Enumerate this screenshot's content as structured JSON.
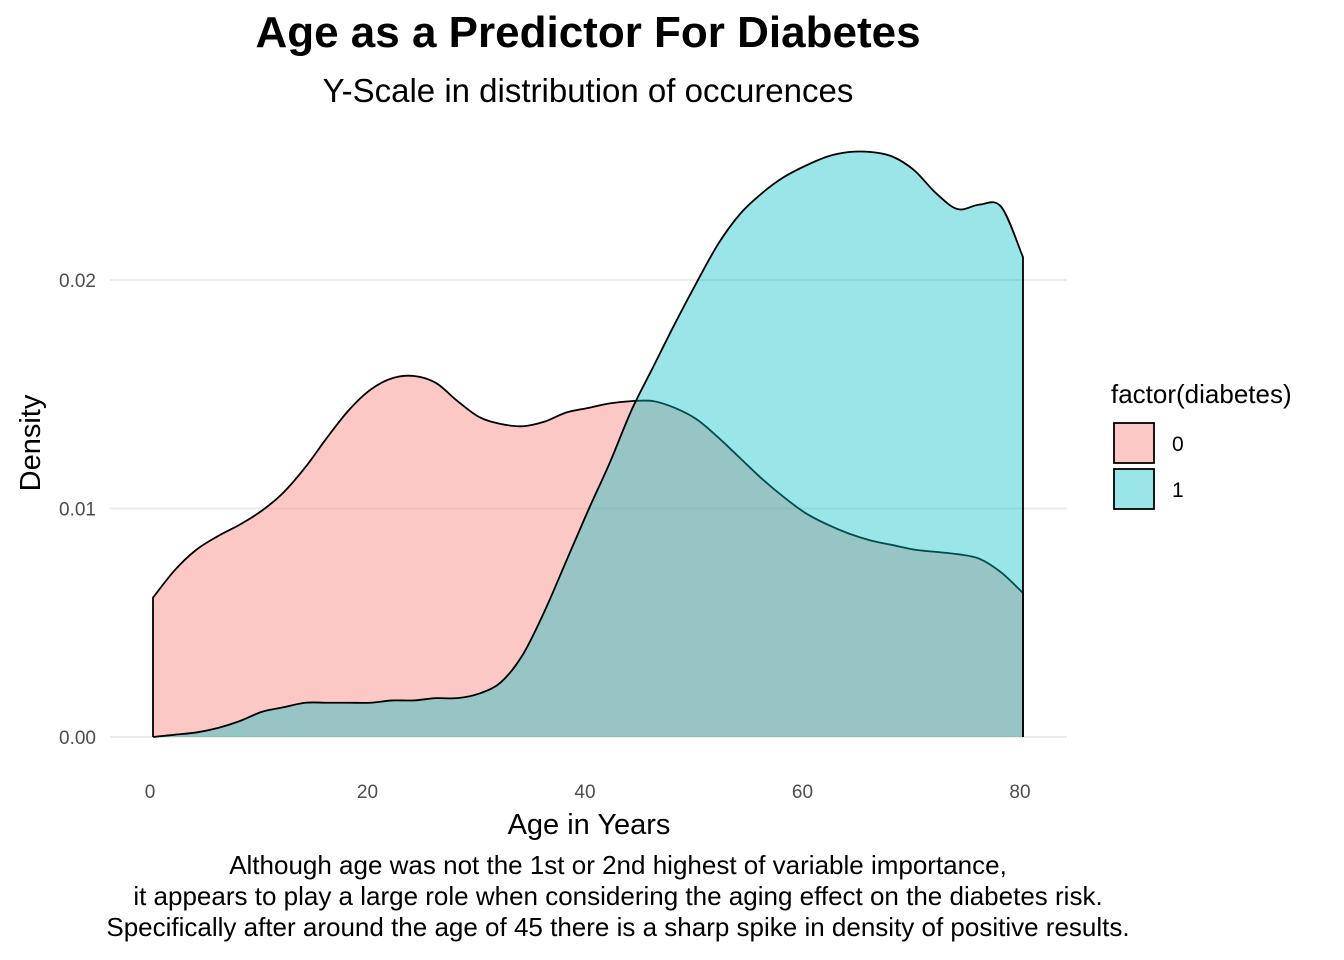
{
  "chart_data": {
    "type": "area",
    "title": "Age as a Predictor For Diabetes",
    "subtitle": "Y-Scale in distribution of occurences",
    "xlabel": "Age in Years",
    "ylabel": "Density",
    "xlim": [
      0,
      80
    ],
    "ylim": [
      0,
      0.026
    ],
    "xticks": [
      0,
      20,
      40,
      60,
      80
    ],
    "xtick_labels": [
      "0",
      "20",
      "40",
      "60",
      "80"
    ],
    "yticks": [
      0,
      0.01,
      0.02
    ],
    "ytick_labels": [
      "0.00",
      "0.01",
      "0.02"
    ],
    "grid": true,
    "legend": {
      "title": "factor(diabetes)",
      "position": "right"
    },
    "series": [
      {
        "name": "0",
        "color": "#F8766D",
        "x": [
          0,
          2,
          4,
          6,
          8,
          10,
          12,
          14,
          16,
          18,
          20,
          22,
          24,
          26,
          28,
          30,
          32,
          34,
          36,
          38,
          40,
          42,
          44,
          46,
          48,
          50,
          52,
          54,
          56,
          58,
          60,
          62,
          64,
          66,
          68,
          70,
          72,
          74,
          76,
          78,
          80
        ],
        "values": [
          0.0061,
          0.0073,
          0.0082,
          0.0088,
          0.0093,
          0.0099,
          0.0107,
          0.0118,
          0.0131,
          0.0143,
          0.0152,
          0.0157,
          0.0158,
          0.0155,
          0.0147,
          0.014,
          0.0137,
          0.0136,
          0.0138,
          0.0142,
          0.0144,
          0.0146,
          0.0147,
          0.0147,
          0.0144,
          0.0139,
          0.0131,
          0.0122,
          0.0113,
          0.0105,
          0.0098,
          0.0093,
          0.0089,
          0.0086,
          0.0084,
          0.0082,
          0.0081,
          0.008,
          0.0078,
          0.0072,
          0.0063
        ]
      },
      {
        "name": "1",
        "color": "#00BFC4",
        "x": [
          0,
          2,
          4,
          6,
          8,
          10,
          12,
          14,
          16,
          18,
          20,
          22,
          24,
          26,
          28,
          30,
          32,
          34,
          36,
          38,
          40,
          42,
          44,
          46,
          48,
          50,
          52,
          54,
          56,
          58,
          60,
          62,
          64,
          66,
          68,
          70,
          72,
          74,
          76,
          78,
          80
        ],
        "values": [
          0.0,
          0.0001,
          0.0002,
          0.0004,
          0.0007,
          0.0011,
          0.0013,
          0.0015,
          0.0015,
          0.0015,
          0.0015,
          0.0016,
          0.0016,
          0.0017,
          0.0017,
          0.0019,
          0.0024,
          0.0036,
          0.0055,
          0.0077,
          0.0099,
          0.012,
          0.0143,
          0.0162,
          0.0181,
          0.0199,
          0.0216,
          0.0229,
          0.0238,
          0.0245,
          0.025,
          0.0254,
          0.0256,
          0.0256,
          0.0254,
          0.0248,
          0.0238,
          0.0231,
          0.0233,
          0.0232,
          0.021
        ]
      }
    ],
    "annotations": [
      "Although age was not the 1st or 2nd highest of variable importance,",
      "it appears to play a large role when considering the aging effect on the diabetes risk.",
      "Specifically after around the age of 45 there is a sharp spike in density of positive results."
    ]
  }
}
